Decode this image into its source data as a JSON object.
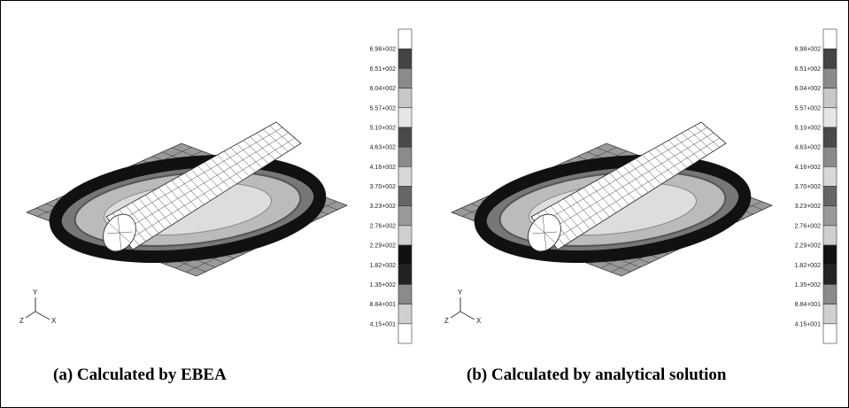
{
  "panels": [
    {
      "caption": "(a) Calculated by EBEA",
      "axes": {
        "y": "Y",
        "z": "Z",
        "x": "X"
      },
      "colorbar_labels": [
        "6.98+002",
        "6.51+002",
        "6.04+002",
        "5.57+002",
        "5.10+002",
        "4.63+002",
        "4.16+002",
        "3.70+002",
        "3.23+002",
        "2.76+002",
        "2.29+002",
        "1.82+002",
        "1.35+002",
        "8.84+001",
        "4.15+001"
      ]
    },
    {
      "caption": "(b) Calculated by analytical solution",
      "axes": {
        "y": "Y",
        "z": "Z",
        "x": "X"
      },
      "colorbar_labels": [
        "6.98+002",
        "6.51+002",
        "6.04+002",
        "5.57+002",
        "5.10+002",
        "4.63+002",
        "4.16+002",
        "3.70+002",
        "3.23+002",
        "2.76+002",
        "2.29+002",
        "1.82+002",
        "1.35+002",
        "8.84+001",
        "4.15+001"
      ]
    }
  ]
}
